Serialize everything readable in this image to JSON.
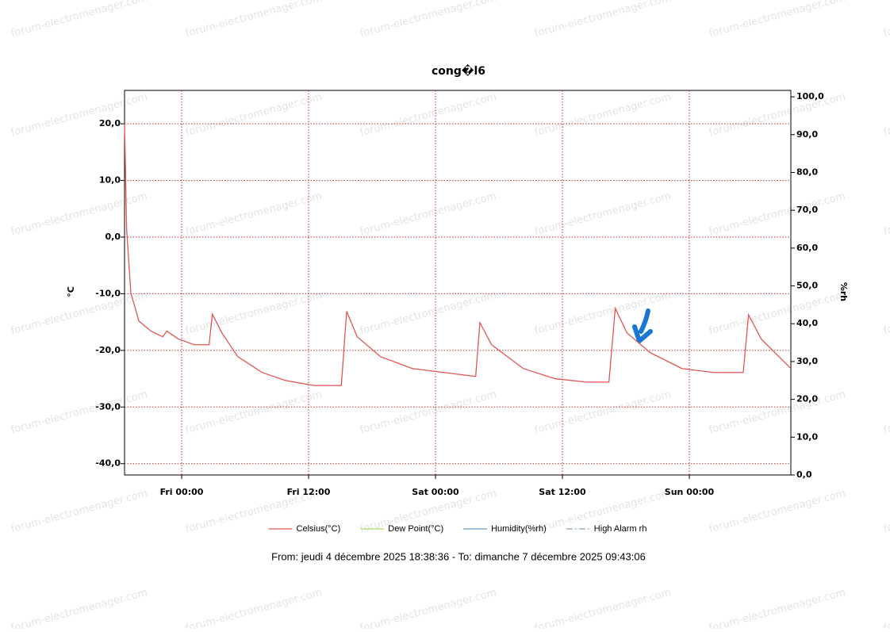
{
  "chart_data": {
    "type": "line",
    "title": "cong�l6",
    "ylabel": "°C",
    "y2label": "%rh",
    "footer": "From: jeudi 4 décembre 2025 18:38:36  -  To: dimanche 7 décembre 2025 09:43:06",
    "watermark": "forum-electromenager.com",
    "grid": true,
    "legend": "bottom",
    "x": [
      -5.4,
      -5.2,
      -4.8,
      -4.05,
      -2.9,
      -1.8,
      -1.4,
      -0.3,
      1.2,
      2.6,
      2.9,
      3.8,
      5.3,
      7.6,
      9.8,
      12.5,
      15.1,
      15.6,
      16.6,
      18.8,
      21.8,
      24.8,
      27.8,
      28.2,
      29.3,
      32.3,
      35.3,
      38.3,
      40.4,
      41,
      42.1,
      44.3,
      47.3,
      50.3,
      53.1,
      53.6,
      54.8,
      57.6
    ],
    "xlim": [
      -5.4,
      57.6
    ],
    "xticks": [
      {
        "value": 0,
        "label": "Fri 00:00"
      },
      {
        "value": 12,
        "label": "Fri 12:00"
      },
      {
        "value": 24,
        "label": "Sat 00:00"
      },
      {
        "value": 36,
        "label": "Sat 12:00"
      },
      {
        "value": 48,
        "label": "Sun 00:00"
      }
    ],
    "ylim": [
      -42,
      25.9
    ],
    "yticks": [
      {
        "value": -40,
        "label": "-40,0"
      },
      {
        "value": -30,
        "label": "-30,0"
      },
      {
        "value": -20,
        "label": "-20,0"
      },
      {
        "value": -10,
        "label": "-10,0"
      },
      {
        "value": 0,
        "label": "0,0"
      },
      {
        "value": 10,
        "label": "10,0"
      },
      {
        "value": 20,
        "label": "20,0"
      }
    ],
    "y2lim": [
      0,
      101.7
    ],
    "y2ticks": [
      {
        "value": 0,
        "label": "0,0"
      },
      {
        "value": 10,
        "label": "10,0"
      },
      {
        "value": 20,
        "label": "20,0"
      },
      {
        "value": 30,
        "label": "30,0"
      },
      {
        "value": 40,
        "label": "40,0"
      },
      {
        "value": 50,
        "label": "50,0"
      },
      {
        "value": 60,
        "label": "60,0"
      },
      {
        "value": 70,
        "label": "70,0"
      },
      {
        "value": 80,
        "label": "80,0"
      },
      {
        "value": 90,
        "label": "90,0"
      },
      {
        "value": 100,
        "label": "100,0"
      }
    ],
    "series": [
      {
        "name": "Celsius(°C)",
        "color": "#e05555",
        "dash": "solid",
        "values": [
          20,
          1.3,
          -9.9,
          -14.8,
          -16.6,
          -17.6,
          -16.6,
          -18,
          -19,
          -19,
          -13.6,
          -16.9,
          -21.1,
          -23.9,
          -25.3,
          -26.2,
          -26.2,
          -13.1,
          -17.6,
          -21.1,
          -23.2,
          -23.9,
          -24.6,
          -15.1,
          -19,
          -23.2,
          -25,
          -25.6,
          -25.6,
          -12.6,
          -16.9,
          -20.4,
          -23.2,
          -23.9,
          -23.9,
          -13.7,
          -18,
          -23.2
        ]
      },
      {
        "name": "Dew Point(°C)",
        "color": "#a8e060",
        "dash": "solid",
        "values": [
          null,
          null,
          null,
          null,
          null,
          null,
          null,
          null,
          null,
          null,
          null,
          null,
          null,
          null,
          null,
          null,
          null,
          null,
          null,
          null,
          null,
          null,
          null,
          null,
          null,
          null,
          null,
          null,
          null,
          null,
          null,
          null,
          null,
          null,
          null,
          null,
          null,
          null
        ]
      },
      {
        "name": "Humidity(%rh)",
        "color": "#6a9ac0",
        "dash": "solid",
        "axis": "y2",
        "values": [
          null,
          null,
          null,
          null,
          null,
          null,
          null,
          null,
          null,
          null,
          null,
          null,
          null,
          null,
          null,
          null,
          null,
          null,
          null,
          null,
          null,
          null,
          null,
          null,
          null,
          null,
          null,
          null,
          null,
          null,
          null,
          null,
          null,
          null,
          null,
          null,
          null,
          null
        ]
      },
      {
        "name": "High Alarm rh",
        "color": "#8aa0b0",
        "dash": "dashdot",
        "axis": "y2",
        "values": [
          null,
          null,
          null,
          null,
          null,
          null,
          null,
          null,
          null,
          null,
          null,
          null,
          null,
          null,
          null,
          null,
          null,
          null,
          null,
          null,
          null,
          null,
          null,
          null,
          null,
          null,
          null,
          null,
          null,
          null,
          null,
          null,
          null,
          null,
          null,
          null,
          null,
          null
        ]
      }
    ]
  }
}
